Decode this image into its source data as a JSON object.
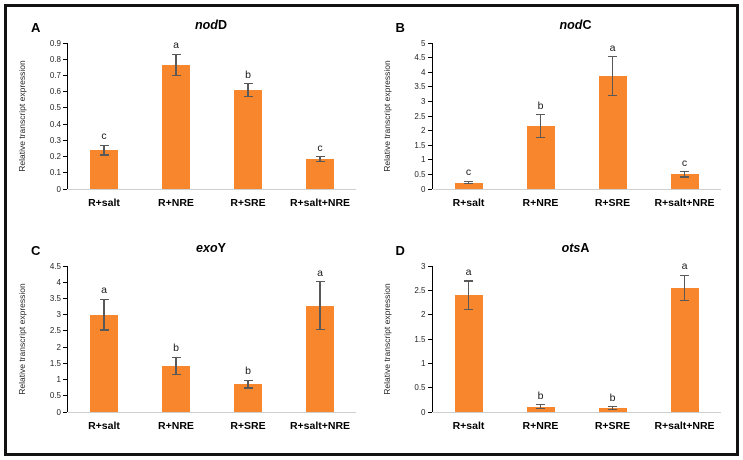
{
  "figure": {
    "bar_color": "#f7862c",
    "error_bar_color": "#595959",
    "axis_color": "#000000",
    "baseline_color": "#cfcfcf",
    "ylabel": "Relative transcript expression",
    "categories": [
      "R+salt",
      "R+NRE",
      "R+SRE",
      "R+salt+NRE"
    ]
  },
  "chart_data": [
    {
      "type": "bar",
      "panel_letter": "A",
      "title_italic": "nod",
      "title_plain": "D",
      "ylabel": "Relative transcript expression",
      "categories": [
        "R+salt",
        "R+NRE",
        "R+SRE",
        "R+salt+NRE"
      ],
      "values": [
        0.24,
        0.765,
        0.61,
        0.185
      ],
      "errors": [
        0.03,
        0.065,
        0.04,
        0.015
      ],
      "sig_letters": [
        "c",
        "a",
        "b",
        "c"
      ],
      "ylim": [
        0,
        0.9
      ],
      "tick_labels": [
        "0",
        "0.1",
        "0.2",
        "0.3",
        "0.4",
        "0.5",
        "0.6",
        "0.7",
        "0.8",
        "0.9"
      ],
      "grid": false,
      "legend": false
    },
    {
      "type": "bar",
      "panel_letter": "B",
      "title_italic": "nod",
      "title_plain": "C",
      "ylabel": "Relative transcript expression",
      "categories": [
        "R+salt",
        "R+NRE",
        "R+SRE",
        "R+salt+NRE"
      ],
      "values": [
        0.22,
        2.15,
        3.87,
        0.5
      ],
      "errors": [
        0.04,
        0.4,
        0.66,
        0.09
      ],
      "sig_letters": [
        "c",
        "b",
        "a",
        "c"
      ],
      "ylim": [
        0,
        5
      ],
      "tick_labels": [
        "0",
        "0.5",
        "1",
        "1.5",
        "2",
        "2.5",
        "3",
        "3.5",
        "4",
        "4.5",
        "5"
      ],
      "grid": false,
      "legend": false
    },
    {
      "type": "bar",
      "panel_letter": "C",
      "title_italic": "exo",
      "title_plain": "Y",
      "ylabel": "Relative transcript expression",
      "categories": [
        "R+salt",
        "R+NRE",
        "R+SRE",
        "R+salt+NRE"
      ],
      "values": [
        3.0,
        1.42,
        0.86,
        3.28
      ],
      "errors": [
        0.47,
        0.27,
        0.12,
        0.73
      ],
      "sig_letters": [
        "a",
        "b",
        "b",
        "a"
      ],
      "ylim": [
        0,
        4.5
      ],
      "tick_labels": [
        "0",
        "0.5",
        "1",
        "1.5",
        "2",
        "2.5",
        "3",
        "3.5",
        "4",
        "4.5"
      ],
      "grid": false,
      "legend": false
    },
    {
      "type": "bar",
      "panel_letter": "D",
      "title_italic": "ots",
      "title_plain": "A",
      "ylabel": "Relative transcript expression",
      "categories": [
        "R+salt",
        "R+NRE",
        "R+SRE",
        "R+salt+NRE"
      ],
      "values": [
        2.4,
        0.11,
        0.08,
        2.55
      ],
      "errors": [
        0.29,
        0.04,
        0.03,
        0.26
      ],
      "sig_letters": [
        "a",
        "b",
        "b",
        "a"
      ],
      "ylim": [
        0,
        3
      ],
      "tick_labels": [
        "0",
        "0.5",
        "1",
        "1.5",
        "2",
        "2.5",
        "3"
      ],
      "grid": false,
      "legend": false
    }
  ]
}
